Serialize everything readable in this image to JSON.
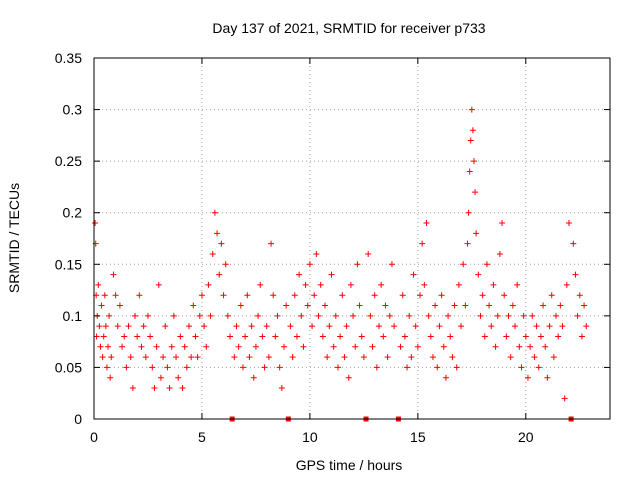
{
  "chart_data": {
    "type": "scatter",
    "title": "Day 137 of 2021, SRMTID for receiver p733",
    "xlabel": "GPS time / hours",
    "ylabel": "SRMTID / TECUs",
    "xlim": [
      0,
      23.9
    ],
    "ylim": [
      0,
      0.35
    ],
    "grid": true,
    "marker": "+",
    "color": "#ff0000",
    "x_ticks": [
      0,
      5,
      10,
      15,
      20
    ],
    "x_tick_labels": [
      "0",
      "5",
      "10",
      "15",
      "20"
    ],
    "y_ticks": [
      0,
      0.05,
      0.1,
      0.15,
      0.2,
      0.25,
      0.3,
      0.35
    ],
    "y_tick_labels": [
      "0",
      "0.05",
      "0.1",
      "0.15",
      "0.2",
      "0.25",
      "0.3",
      "0.35"
    ],
    "gap_markers_x": [
      6.4,
      9.0,
      12.6,
      14.1,
      22.1
    ],
    "series": [
      {
        "name": "SRMTID",
        "points": [
          [
            0.05,
            0.19
          ],
          [
            0.08,
            0.17
          ],
          [
            0.1,
            0.12
          ],
          [
            0.12,
            0.08
          ],
          [
            0.15,
            0.1
          ],
          [
            0.2,
            0.13
          ],
          [
            0.25,
            0.09
          ],
          [
            0.3,
            0.07
          ],
          [
            0.35,
            0.11
          ],
          [
            0.4,
            0.06
          ],
          [
            0.45,
            0.08
          ],
          [
            0.5,
            0.12
          ],
          [
            0.55,
            0.09
          ],
          [
            0.6,
            0.05
          ],
          [
            0.65,
            0.07
          ],
          [
            0.7,
            0.1
          ],
          [
            0.75,
            0.04
          ],
          [
            0.8,
            0.06
          ],
          [
            0.9,
            0.14
          ],
          [
            1.0,
            0.12
          ],
          [
            1.1,
            0.09
          ],
          [
            1.2,
            0.11
          ],
          [
            1.3,
            0.07
          ],
          [
            1.4,
            0.08
          ],
          [
            1.5,
            0.05
          ],
          [
            1.6,
            0.09
          ],
          [
            1.7,
            0.06
          ],
          [
            1.8,
            0.03
          ],
          [
            1.9,
            0.1
          ],
          [
            2.0,
            0.08
          ],
          [
            2.1,
            0.12
          ],
          [
            2.2,
            0.07
          ],
          [
            2.3,
            0.09
          ],
          [
            2.4,
            0.06
          ],
          [
            2.5,
            0.1
          ],
          [
            2.6,
            0.08
          ],
          [
            2.7,
            0.05
          ],
          [
            2.8,
            0.03
          ],
          [
            2.9,
            0.07
          ],
          [
            3.0,
            0.13
          ],
          [
            3.1,
            0.04
          ],
          [
            3.2,
            0.06
          ],
          [
            3.3,
            0.09
          ],
          [
            3.4,
            0.05
          ],
          [
            3.5,
            0.03
          ],
          [
            3.6,
            0.07
          ],
          [
            3.7,
            0.1
          ],
          [
            3.8,
            0.06
          ],
          [
            3.9,
            0.04
          ],
          [
            4.0,
            0.08
          ],
          [
            4.1,
            0.03
          ],
          [
            4.2,
            0.07
          ],
          [
            4.3,
            0.05
          ],
          [
            4.4,
            0.09
          ],
          [
            4.5,
            0.06
          ],
          [
            4.6,
            0.11
          ],
          [
            4.7,
            0.08
          ],
          [
            4.8,
            0.06
          ],
          [
            4.9,
            0.1
          ],
          [
            5.0,
            0.12
          ],
          [
            5.1,
            0.09
          ],
          [
            5.2,
            0.07
          ],
          [
            5.3,
            0.13
          ],
          [
            5.4,
            0.1
          ],
          [
            5.5,
            0.16
          ],
          [
            5.6,
            0.2
          ],
          [
            5.7,
            0.18
          ],
          [
            5.8,
            0.14
          ],
          [
            5.9,
            0.17
          ],
          [
            6.0,
            0.12
          ],
          [
            6.1,
            0.15
          ],
          [
            6.2,
            0.1
          ],
          [
            6.3,
            0.08
          ],
          [
            6.5,
            0.06
          ],
          [
            6.6,
            0.09
          ],
          [
            6.7,
            0.07
          ],
          [
            6.8,
            0.11
          ],
          [
            6.9,
            0.05
          ],
          [
            7.0,
            0.08
          ],
          [
            7.1,
            0.12
          ],
          [
            7.2,
            0.06
          ],
          [
            7.3,
            0.09
          ],
          [
            7.4,
            0.04
          ],
          [
            7.5,
            0.07
          ],
          [
            7.6,
            0.1
          ],
          [
            7.7,
            0.13
          ],
          [
            7.8,
            0.08
          ],
          [
            7.9,
            0.05
          ],
          [
            8.0,
            0.09
          ],
          [
            8.1,
            0.06
          ],
          [
            8.2,
            0.17
          ],
          [
            8.3,
            0.12
          ],
          [
            8.4,
            0.08
          ],
          [
            8.5,
            0.1
          ],
          [
            8.6,
            0.05
          ],
          [
            8.7,
            0.03
          ],
          [
            8.8,
            0.07
          ],
          [
            8.9,
            0.11
          ],
          [
            9.1,
            0.09
          ],
          [
            9.2,
            0.06
          ],
          [
            9.3,
            0.12
          ],
          [
            9.4,
            0.08
          ],
          [
            9.5,
            0.14
          ],
          [
            9.6,
            0.1
          ],
          [
            9.7,
            0.07
          ],
          [
            9.8,
            0.13
          ],
          [
            9.9,
            0.11
          ],
          [
            10.0,
            0.15
          ],
          [
            10.1,
            0.09
          ],
          [
            10.2,
            0.12
          ],
          [
            10.3,
            0.16
          ],
          [
            10.4,
            0.1
          ],
          [
            10.5,
            0.13
          ],
          [
            10.6,
            0.08
          ],
          [
            10.7,
            0.11
          ],
          [
            10.8,
            0.06
          ],
          [
            10.9,
            0.09
          ],
          [
            11.0,
            0.14
          ],
          [
            11.1,
            0.07
          ],
          [
            11.2,
            0.1
          ],
          [
            11.3,
            0.05
          ],
          [
            11.4,
            0.08
          ],
          [
            11.5,
            0.12
          ],
          [
            11.6,
            0.06
          ],
          [
            11.7,
            0.09
          ],
          [
            11.8,
            0.04
          ],
          [
            11.9,
            0.13
          ],
          [
            12.0,
            0.1
          ],
          [
            12.1,
            0.07
          ],
          [
            12.2,
            0.15
          ],
          [
            12.3,
            0.11
          ],
          [
            12.4,
            0.08
          ],
          [
            12.5,
            0.06
          ],
          [
            12.7,
            0.16
          ],
          [
            12.8,
            0.1
          ],
          [
            12.9,
            0.07
          ],
          [
            13.0,
            0.12
          ],
          [
            13.1,
            0.05
          ],
          [
            13.2,
            0.09
          ],
          [
            13.3,
            0.13
          ],
          [
            13.4,
            0.08
          ],
          [
            13.5,
            0.11
          ],
          [
            13.6,
            0.06
          ],
          [
            13.7,
            0.1
          ],
          [
            13.8,
            0.15
          ],
          [
            13.9,
            0.09
          ],
          [
            14.2,
            0.07
          ],
          [
            14.3,
            0.12
          ],
          [
            14.4,
            0.08
          ],
          [
            14.5,
            0.05
          ],
          [
            14.6,
            0.1
          ],
          [
            14.7,
            0.06
          ],
          [
            14.8,
            0.14
          ],
          [
            14.9,
            0.09
          ],
          [
            15.0,
            0.07
          ],
          [
            15.1,
            0.12
          ],
          [
            15.2,
            0.17
          ],
          [
            15.3,
            0.13
          ],
          [
            15.4,
            0.19
          ],
          [
            15.5,
            0.1
          ],
          [
            15.6,
            0.08
          ],
          [
            15.7,
            0.06
          ],
          [
            15.8,
            0.11
          ],
          [
            15.9,
            0.05
          ],
          [
            16.0,
            0.09
          ],
          [
            16.1,
            0.12
          ],
          [
            16.2,
            0.07
          ],
          [
            16.3,
            0.04
          ],
          [
            16.4,
            0.1
          ],
          [
            16.5,
            0.08
          ],
          [
            16.6,
            0.06
          ],
          [
            16.7,
            0.11
          ],
          [
            16.8,
            0.05
          ],
          [
            16.9,
            0.13
          ],
          [
            17.0,
            0.09
          ],
          [
            17.1,
            0.15
          ],
          [
            17.2,
            0.11
          ],
          [
            17.3,
            0.17
          ],
          [
            17.35,
            0.2
          ],
          [
            17.4,
            0.24
          ],
          [
            17.45,
            0.27
          ],
          [
            17.5,
            0.3
          ],
          [
            17.55,
            0.28
          ],
          [
            17.6,
            0.25
          ],
          [
            17.65,
            0.22
          ],
          [
            17.7,
            0.18
          ],
          [
            17.8,
            0.14
          ],
          [
            17.9,
            0.1
          ],
          [
            18.0,
            0.12
          ],
          [
            18.1,
            0.08
          ],
          [
            18.2,
            0.15
          ],
          [
            18.3,
            0.11
          ],
          [
            18.4,
            0.09
          ],
          [
            18.5,
            0.13
          ],
          [
            18.6,
            0.07
          ],
          [
            18.7,
            0.1
          ],
          [
            18.8,
            0.16
          ],
          [
            18.9,
            0.19
          ],
          [
            19.0,
            0.12
          ],
          [
            19.1,
            0.08
          ],
          [
            19.2,
            0.1
          ],
          [
            19.3,
            0.06
          ],
          [
            19.4,
            0.11
          ],
          [
            19.5,
            0.09
          ],
          [
            19.6,
            0.13
          ],
          [
            19.7,
            0.07
          ],
          [
            19.8,
            0.05
          ],
          [
            19.9,
            0.1
          ],
          [
            20.0,
            0.08
          ],
          [
            20.1,
            0.04
          ],
          [
            20.2,
            0.07
          ],
          [
            20.3,
            0.1
          ],
          [
            20.4,
            0.06
          ],
          [
            20.5,
            0.09
          ],
          [
            20.6,
            0.05
          ],
          [
            20.7,
            0.08
          ],
          [
            20.8,
            0.11
          ],
          [
            20.9,
            0.07
          ],
          [
            21.0,
            0.04
          ],
          [
            21.1,
            0.09
          ],
          [
            21.2,
            0.12
          ],
          [
            21.3,
            0.06
          ],
          [
            21.4,
            0.1
          ],
          [
            21.5,
            0.08
          ],
          [
            21.6,
            0.11
          ],
          [
            21.7,
            0.09
          ],
          [
            21.8,
            0.02
          ],
          [
            21.9,
            0.13
          ],
          [
            22.0,
            0.19
          ],
          [
            22.2,
            0.17
          ],
          [
            22.3,
            0.14
          ],
          [
            22.4,
            0.1
          ],
          [
            22.5,
            0.12
          ],
          [
            22.6,
            0.08
          ],
          [
            22.7,
            0.11
          ],
          [
            22.8,
            0.09
          ]
        ]
      }
    ]
  }
}
